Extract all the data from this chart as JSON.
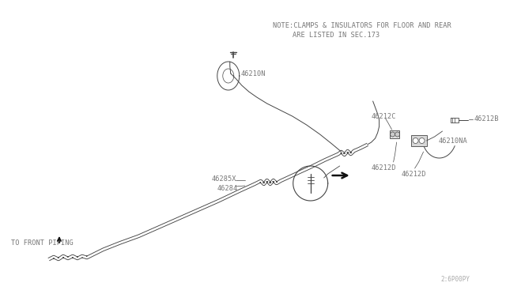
{
  "bg_color": "#ffffff",
  "line_color": "#444444",
  "text_color": "#777777",
  "note_line1": "NOTE:CLAMPS & INSULATORS FOR FLOOR AND REAR",
  "note_line2": "ARE LISTED IN SEC.173",
  "watermark": "2:6P00PY",
  "fs": 6.0
}
